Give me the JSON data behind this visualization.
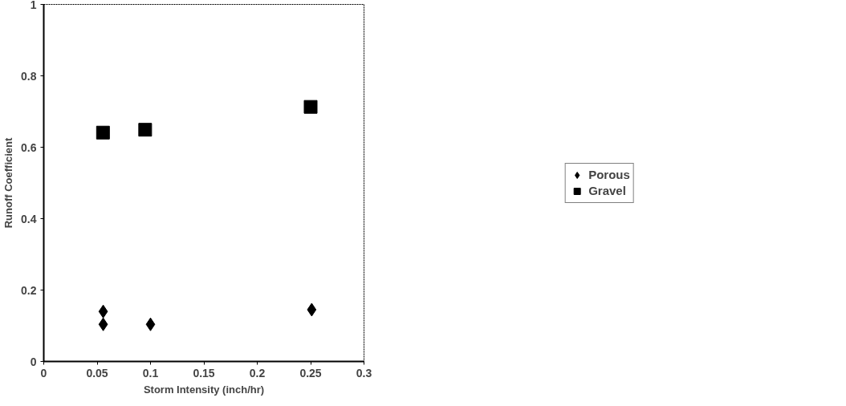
{
  "chart_data": {
    "type": "scatter",
    "xlabel": "Storm Intensity (inch/hr)",
    "ylabel": "Runoff Coefficient",
    "xlim": [
      0,
      0.3
    ],
    "xticks": [
      0,
      0.05,
      0.1,
      0.15,
      0.2,
      0.25,
      0.3
    ],
    "ylim": [
      0,
      1
    ],
    "yticks": [
      0,
      0.2,
      0.4,
      0.6,
      0.8,
      1
    ],
    "grid": false,
    "legend": "right",
    "series": [
      {
        "name": "Porous",
        "color": "#000000",
        "marker": "diamond",
        "x": [
          0.0557,
          0.0557,
          0.1,
          0.251
        ],
        "values": [
          0.14,
          0.104,
          0.104,
          0.145
        ]
      },
      {
        "name": "Gravel",
        "color": "#000000",
        "marker": "square",
        "x": [
          0.0555,
          0.095,
          0.25
        ],
        "values": [
          0.641,
          0.649,
          0.713
        ]
      }
    ]
  }
}
